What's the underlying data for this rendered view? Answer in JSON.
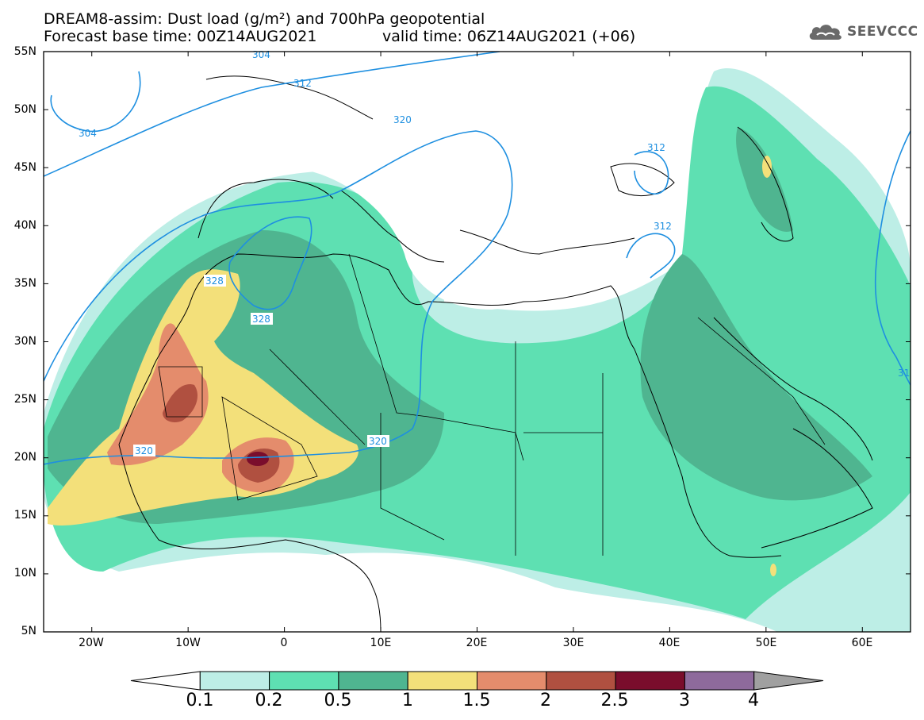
{
  "title": {
    "line1": "DREAM8-assim: Dust load (g/m²) and 700hPa geopotential",
    "line2a": "Forecast base time: 00Z14AUG2021",
    "line2b": "valid time: 06Z14AUG2021 (+06)"
  },
  "logo": {
    "text": "SEEVCCC",
    "icon": "cloud-icon"
  },
  "axes": {
    "lat_labels": [
      "55N",
      "50N",
      "45N",
      "40N",
      "35N",
      "30N",
      "25N",
      "20N",
      "15N",
      "10N",
      "5N"
    ],
    "lon_labels": [
      "20W",
      "10W",
      "0",
      "10E",
      "20E",
      "30E",
      "40E",
      "50E",
      "60E"
    ],
    "lat_range": [
      5,
      55
    ],
    "lon_range": [
      -25,
      65
    ]
  },
  "contours": {
    "geopotential_labels": [
      "304",
      "304",
      "312",
      "320",
      "312",
      "312",
      "328",
      "328",
      "320",
      "320",
      "31"
    ]
  },
  "colorbar": {
    "labels": [
      "0.1",
      "0.2",
      "0.5",
      "1",
      "1.5",
      "2",
      "2.5",
      "3",
      "4"
    ],
    "colors": [
      "#ffffff",
      "#bdeee6",
      "#5ee0b2",
      "#4fb590",
      "#f3e07a",
      "#e48c6c",
      "#b05040",
      "#7a0d2c",
      "#8e6a9c",
      "#a0a0a0"
    ]
  },
  "colors": {
    "light": "#bdeee6",
    "mid": "#5ee0b2",
    "dark": "#4fb590",
    "yellow": "#f3e07a",
    "orange": "#e48c6c",
    "brown": "#b05040",
    "maroon": "#7a0d2c",
    "contour": "#1e8fe0"
  }
}
